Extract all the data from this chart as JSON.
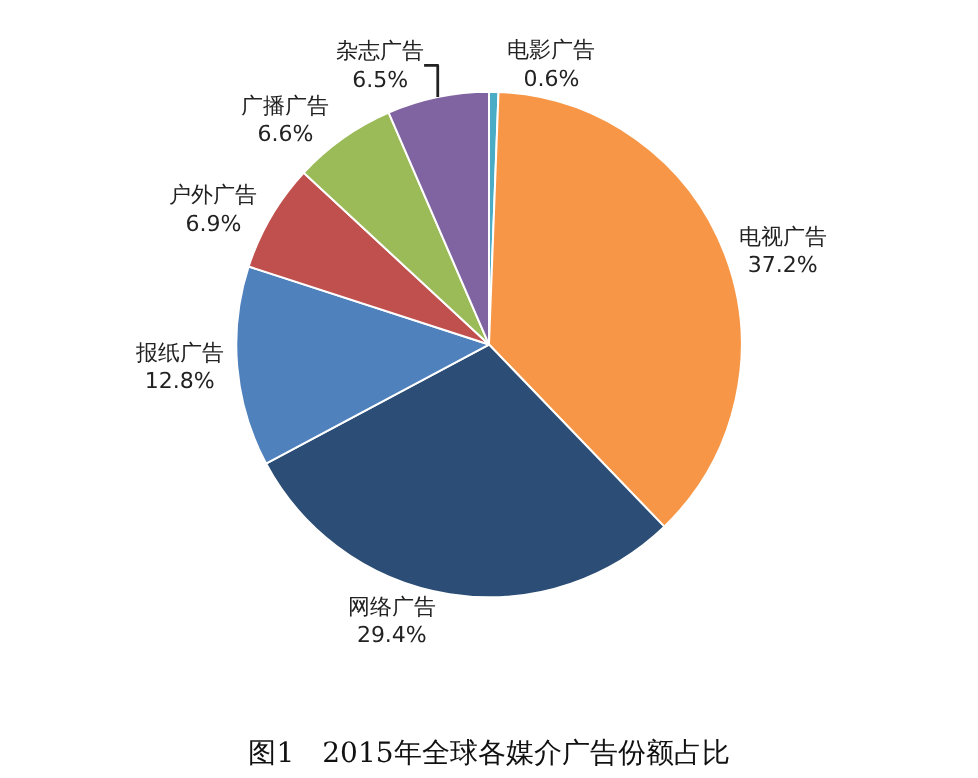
{
  "chart_data": {
    "type": "pie",
    "title": "图1　2015年全球各媒介广告份额占比",
    "categories": [
      "电影广告",
      "电视广告",
      "网络广告",
      "报纸广告",
      "户外广告",
      "广播广告",
      "杂志广告"
    ],
    "values": [
      0.6,
      37.2,
      29.4,
      12.8,
      6.9,
      6.6,
      6.5
    ],
    "value_labels": [
      "0.6%",
      "37.2%",
      "29.4%",
      "12.8%",
      "6.9%",
      "6.6%",
      "6.5%"
    ],
    "colors": [
      "#4bacc6",
      "#f79646",
      "#2c4d75",
      "#4f81bd",
      "#c0504d",
      "#9bbb59",
      "#8064a2"
    ],
    "legend": false
  }
}
